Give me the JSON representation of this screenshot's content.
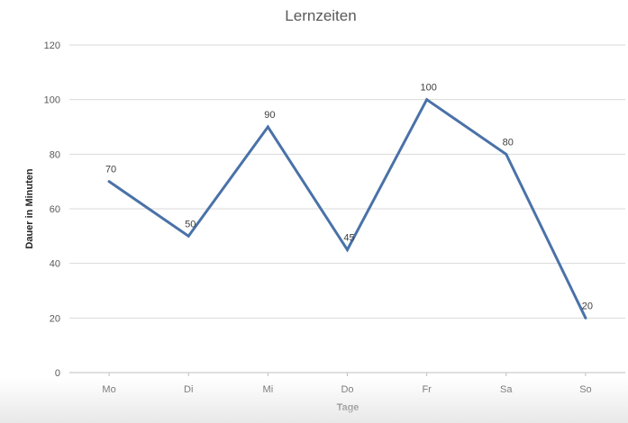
{
  "chart_data": {
    "type": "line",
    "title": "Lernzeiten",
    "xlabel": "Tage",
    "ylabel": "Dauer in Minuten",
    "categories": [
      "Mo",
      "Di",
      "Mi",
      "Do",
      "Fr",
      "Sa",
      "So"
    ],
    "series": [
      {
        "values": [
          70,
          50,
          90,
          45,
          100,
          80,
          20
        ],
        "color": "#4a72a8"
      }
    ],
    "ylim": [
      0,
      120
    ],
    "yticks": [
      0,
      20,
      40,
      60,
      80,
      100,
      120
    ],
    "data_labels": true,
    "grid": true,
    "legend": "none"
  }
}
